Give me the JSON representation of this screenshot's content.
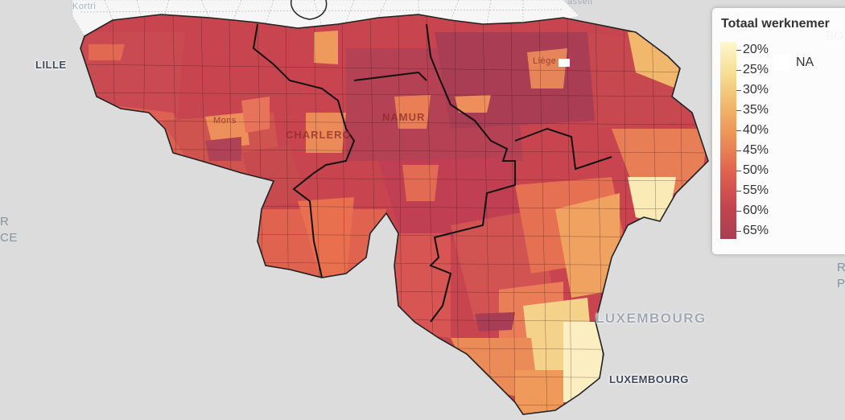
{
  "legend": {
    "title": "Totaal werknemer",
    "ticks": [
      "20%",
      "25%",
      "30%",
      "35%",
      "40%",
      "45%",
      "50%",
      "55%",
      "60%",
      "65%"
    ],
    "na_label": "NA",
    "scale_colors": [
      "#fdf8cc",
      "#f7dc92",
      "#f1b469",
      "#ec8c56",
      "#e06050",
      "#c5454f",
      "#a83e53"
    ]
  },
  "labels": {
    "lille": "LILLE",
    "luxembourg_country": "LUXEMBOURG",
    "luxembourg_city": "LUXEMBOURG",
    "mons": "Mons",
    "charleroi": "CHARLERO",
    "namur": "NAMUR",
    "liege": "Liège",
    "kortrijk": "Kortri",
    "hasselt": "asselt",
    "left_edge_1": "R",
    "left_edge_2": "CE",
    "right_edge_1": "BO",
    "right_edge_2": "R",
    "right_edge_3": "P"
  },
  "colors": {
    "background": "#dcdcdc",
    "flanders": "#f6f6f7",
    "region_border": "#111111",
    "na_fill": "#ffffff"
  }
}
